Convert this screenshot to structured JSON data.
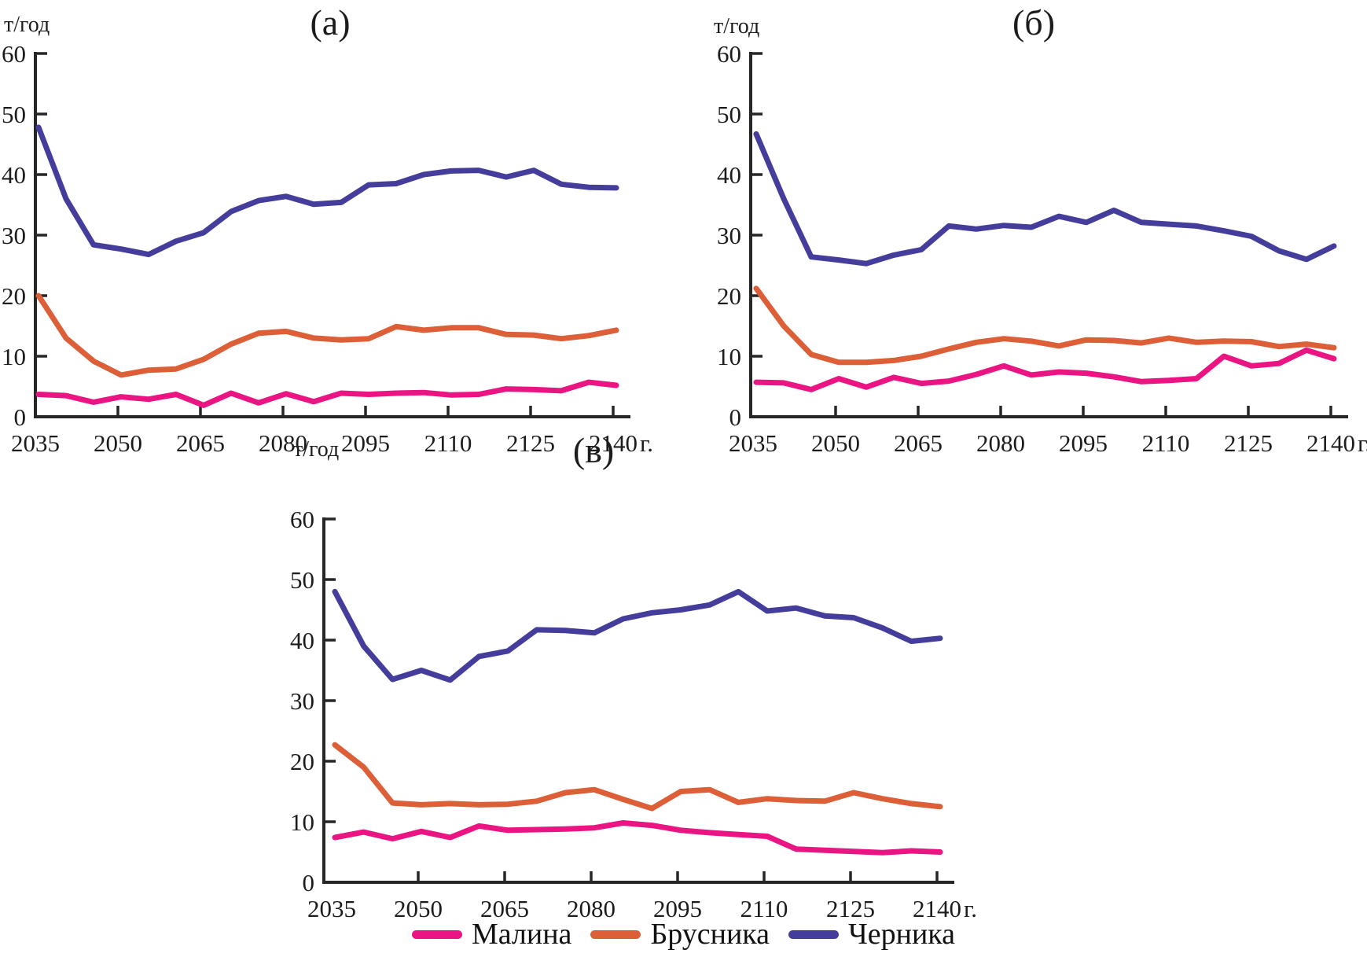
{
  "figure": {
    "unit_label": "т/год",
    "x_axis_suffix": "г."
  },
  "legend": [
    {
      "label": "Малина",
      "color": "#EA1583"
    },
    {
      "label": "Брусника",
      "color": "#DC5F38"
    },
    {
      "label": "Черника",
      "color": "#453D9B"
    }
  ],
  "chart_data": [
    {
      "type": "line",
      "title": "(а)",
      "ylabel": "т/год",
      "x_suffix": "г.",
      "ylim": [
        0,
        60
      ],
      "yticks": [
        0,
        10,
        20,
        30,
        40,
        50,
        60
      ],
      "xticks": [
        2035,
        2050,
        2065,
        2080,
        2095,
        2110,
        2125,
        2140
      ],
      "x": [
        2035,
        2040,
        2045,
        2050,
        2055,
        2060,
        2065,
        2070,
        2075,
        2080,
        2085,
        2090,
        2095,
        2100,
        2105,
        2110,
        2115,
        2120,
        2125,
        2130,
        2135,
        2140
      ],
      "series": [
        {
          "name": "Малина",
          "color": "#EA1583",
          "values": [
            3.7,
            3.5,
            2.4,
            3.3,
            2.9,
            3.7,
            1.9,
            3.9,
            2.3,
            3.8,
            2.5,
            3.9,
            3.7,
            3.9,
            4.0,
            3.6,
            3.7,
            4.6,
            4.5,
            4.3,
            5.7,
            5.2
          ]
        },
        {
          "name": "Брусника",
          "color": "#DC5F38",
          "values": [
            20.0,
            13.0,
            9.2,
            6.9,
            7.7,
            7.9,
            9.5,
            12.0,
            13.8,
            14.1,
            13.0,
            12.7,
            12.9,
            14.9,
            14.3,
            14.7,
            14.7,
            13.6,
            13.5,
            12.9,
            13.4,
            14.3
          ]
        },
        {
          "name": "Черника",
          "color": "#453D9B",
          "values": [
            47.8,
            36.0,
            28.4,
            27.7,
            26.8,
            29.0,
            30.4,
            33.9,
            35.7,
            36.4,
            35.1,
            35.4,
            38.3,
            38.5,
            40.0,
            40.6,
            40.7,
            39.6,
            40.7,
            38.4,
            37.9,
            37.8
          ]
        }
      ]
    },
    {
      "type": "line",
      "title": "(б)",
      "ylabel": "т/год",
      "x_suffix": "г.",
      "ylim": [
        0,
        60
      ],
      "yticks": [
        0,
        10,
        20,
        30,
        40,
        50,
        60
      ],
      "xticks": [
        2035,
        2050,
        2065,
        2080,
        2095,
        2110,
        2125,
        2140
      ],
      "x": [
        2035,
        2040,
        2045,
        2050,
        2055,
        2060,
        2065,
        2070,
        2075,
        2080,
        2085,
        2090,
        2095,
        2100,
        2105,
        2110,
        2115,
        2120,
        2125,
        2130,
        2135,
        2140
      ],
      "series": [
        {
          "name": "Малина",
          "color": "#EA1583",
          "values": [
            5.7,
            5.6,
            4.5,
            6.3,
            4.9,
            6.5,
            5.5,
            5.9,
            7.0,
            8.4,
            6.9,
            7.4,
            7.2,
            6.6,
            5.8,
            6.0,
            6.3,
            10.0,
            8.4,
            8.8,
            11.0,
            9.6
          ]
        },
        {
          "name": "Брусника",
          "color": "#DC5F38",
          "values": [
            21.2,
            15.0,
            10.3,
            9.0,
            9.0,
            9.3,
            10.0,
            11.2,
            12.3,
            12.9,
            12.5,
            11.7,
            12.7,
            12.6,
            12.2,
            13.0,
            12.3,
            12.5,
            12.4,
            11.6,
            12.0,
            11.4
          ]
        },
        {
          "name": "Черника",
          "color": "#453D9B",
          "values": [
            46.7,
            36.0,
            26.4,
            25.9,
            25.3,
            26.7,
            27.6,
            31.5,
            31.0,
            31.6,
            31.3,
            33.1,
            32.1,
            34.1,
            32.1,
            31.8,
            31.5,
            30.7,
            29.8,
            27.4,
            26.0,
            28.2
          ]
        }
      ]
    },
    {
      "type": "line",
      "title": "(в)",
      "ylabel": "т/год",
      "x_suffix": "г.",
      "ylim": [
        0,
        60
      ],
      "yticks": [
        0,
        10,
        20,
        30,
        40,
        50,
        60
      ],
      "xticks": [
        2035,
        2050,
        2065,
        2080,
        2095,
        2110,
        2125,
        2140
      ],
      "x": [
        2035,
        2040,
        2045,
        2050,
        2055,
        2060,
        2065,
        2070,
        2075,
        2080,
        2085,
        2090,
        2095,
        2100,
        2105,
        2110,
        2115,
        2120,
        2125,
        2130,
        2135,
        2140
      ],
      "series": [
        {
          "name": "Малина",
          "color": "#EA1583",
          "values": [
            7.4,
            8.3,
            7.2,
            8.4,
            7.4,
            9.3,
            8.6,
            8.7,
            8.8,
            9.0,
            9.8,
            9.4,
            8.6,
            8.2,
            7.9,
            7.6,
            5.5,
            5.3,
            5.1,
            4.9,
            5.2,
            5.0
          ]
        },
        {
          "name": "Брусника",
          "color": "#DC5F38",
          "values": [
            22.7,
            19.0,
            13.1,
            12.8,
            13.0,
            12.8,
            12.9,
            13.4,
            14.8,
            15.3,
            13.7,
            12.2,
            15.0,
            15.3,
            13.2,
            13.8,
            13.5,
            13.4,
            14.8,
            13.8,
            13.0,
            12.5
          ]
        },
        {
          "name": "Черника",
          "color": "#453D9B",
          "values": [
            48.0,
            39.0,
            33.5,
            35.0,
            33.4,
            37.3,
            38.2,
            41.7,
            41.6,
            41.2,
            43.5,
            44.5,
            45.0,
            45.8,
            48.0,
            44.8,
            45.3,
            44.0,
            43.7,
            42.0,
            39.8,
            40.3
          ]
        }
      ]
    }
  ]
}
